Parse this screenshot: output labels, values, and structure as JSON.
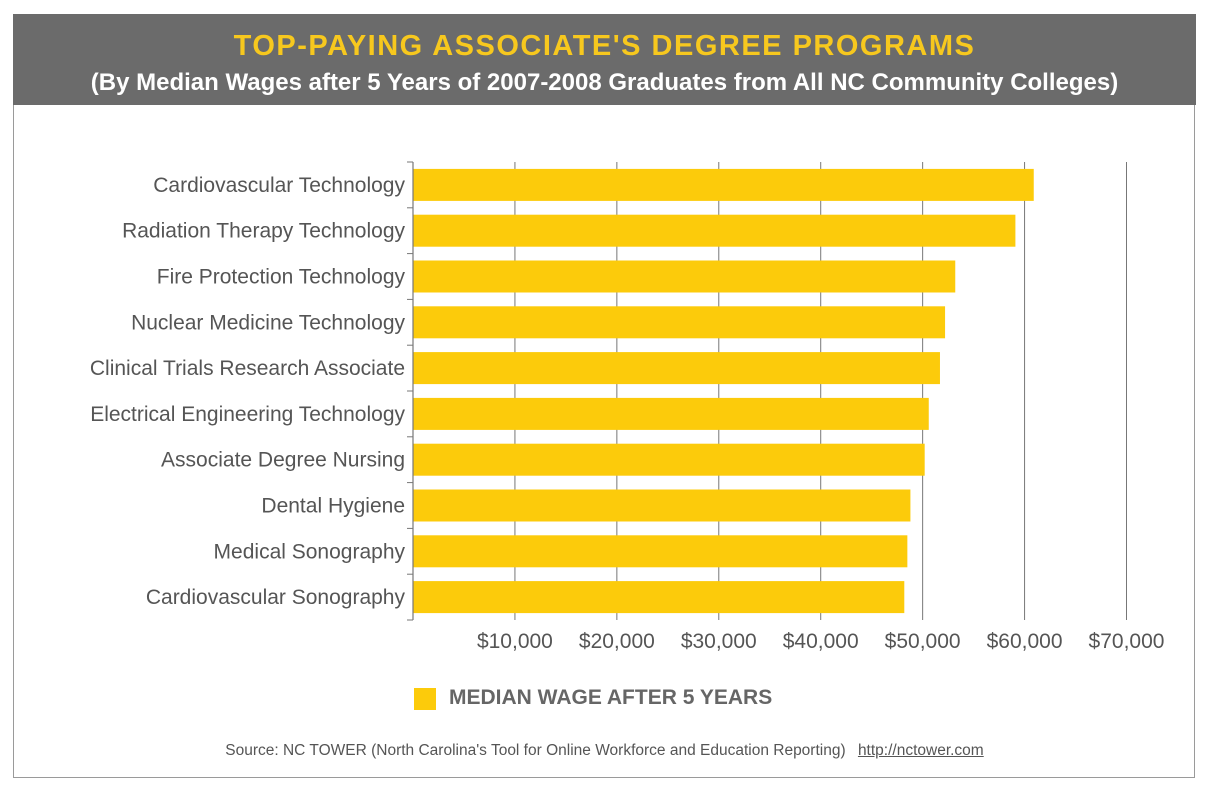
{
  "header": {
    "title": "TOP-PAYING ASSOCIATE'S DEGREE PROGRAMS",
    "subtitle": "(By Median Wages after 5 Years of 2007-2008 Graduates from All NC Community Colleges)"
  },
  "colors": {
    "bar": "#fccb0b",
    "header_bg": "#6b6b6b",
    "title": "#f7c81e",
    "gridline": "#777777",
    "text": "#555555"
  },
  "chart_data": {
    "type": "bar",
    "orientation": "horizontal",
    "title": "TOP-PAYING ASSOCIATE'S DEGREE PROGRAMS",
    "subtitle": "(By Median Wages after 5 Years of 2007-2008 Graduates from All NC Community Colleges)",
    "categories": [
      "Cardiovascular Technology",
      "Radiation Therapy Technology",
      "Fire Protection Technology",
      "Nuclear Medicine Technology",
      "Clinical Trials Research Associate",
      "Electrical Engineering Technology",
      "Associate Degree Nursing",
      "Dental Hygiene",
      "Medical Sonography",
      "Cardiovascular Sonography"
    ],
    "series": [
      {
        "name": "MEDIAN WAGE AFTER 5 YEARS",
        "values": [
          60900,
          59100,
          53200,
          52200,
          51700,
          50600,
          50200,
          48800,
          48500,
          48200
        ]
      }
    ],
    "xlim": [
      0,
      70000
    ],
    "xticks": [
      10000,
      20000,
      30000,
      40000,
      50000,
      60000,
      70000
    ],
    "xtick_labels": [
      "$10,000",
      "$20,000",
      "$30,000",
      "$40,000",
      "$50,000",
      "$60,000",
      "$70,000"
    ],
    "xlabel": "",
    "ylabel": "",
    "grid": true,
    "legend_position": "bottom"
  },
  "legend": {
    "label": "MEDIAN WAGE AFTER 5 YEARS"
  },
  "source": {
    "text": "Source: NC TOWER (North Carolina's Tool for Online Workforce and Education Reporting)",
    "link": "http://nctower.com"
  }
}
